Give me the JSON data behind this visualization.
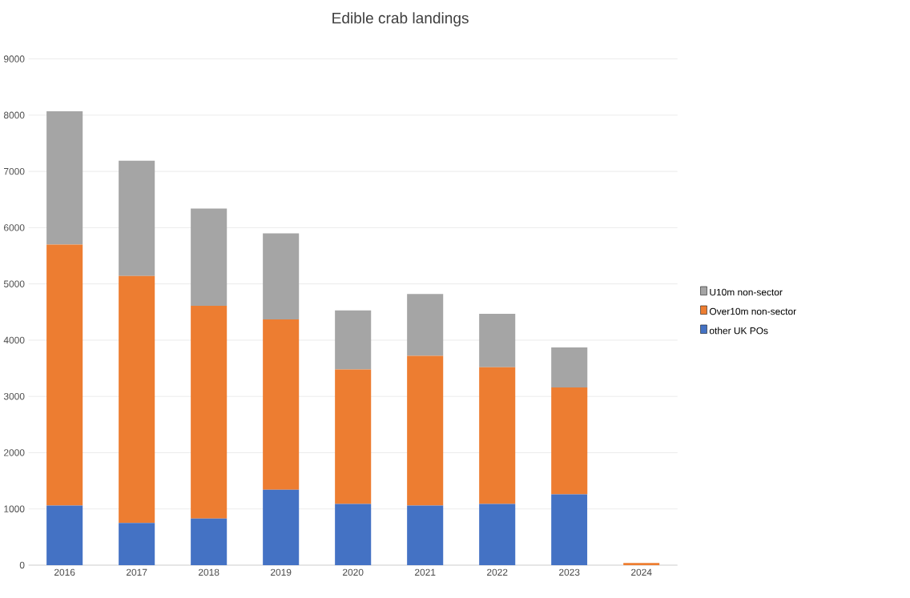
{
  "chart_data": {
    "type": "bar",
    "title": "Edible crab landings",
    "stacked": true,
    "categories": [
      "2016",
      "2017",
      "2018",
      "2019",
      "2020",
      "2021",
      "2022",
      "2023",
      "2024"
    ],
    "series": [
      {
        "name": "other UK POs",
        "color": "#4472c4",
        "values": [
          1060,
          750,
          830,
          1340,
          1090,
          1060,
          1090,
          1260,
          0
        ]
      },
      {
        "name": "Over10m non-sector",
        "color": "#ed7d31",
        "values": [
          4640,
          4390,
          3780,
          3030,
          2390,
          2660,
          2430,
          1900,
          40
        ]
      },
      {
        "name": "U10m non-sector",
        "color": "#a5a5a5",
        "values": [
          2370,
          2050,
          1730,
          1530,
          1050,
          1100,
          950,
          710,
          0
        ]
      }
    ],
    "ylim": [
      0,
      9000
    ],
    "yticks": [
      0,
      1000,
      2000,
      3000,
      4000,
      5000,
      6000,
      7000,
      8000,
      9000
    ],
    "grid": "y",
    "legend": "right"
  }
}
